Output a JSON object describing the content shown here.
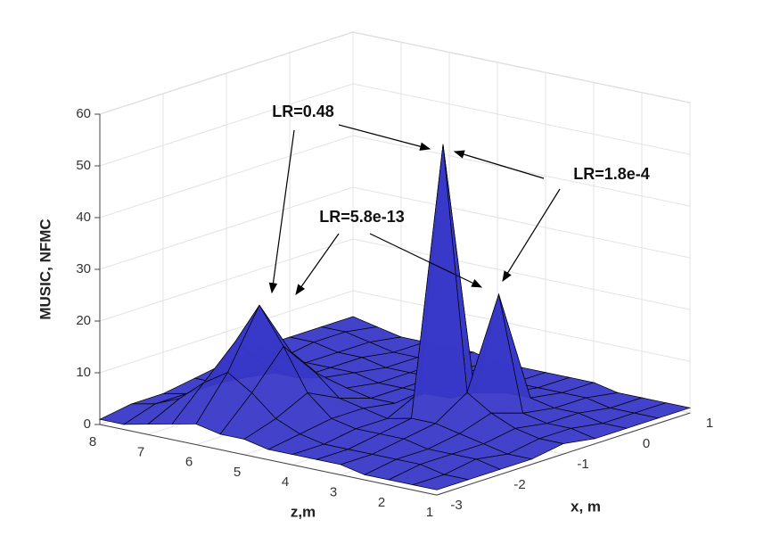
{
  "chart_data": {
    "type": "surface3d",
    "xlabel": "x, m",
    "ylabel": "z,m",
    "zlabel": "MUSIC, NFMC",
    "x": [
      -3,
      -2.5,
      -2,
      -1.5,
      -1,
      -0.5,
      0,
      0.5,
      1
    ],
    "y": [
      1,
      1.5,
      2,
      2.5,
      3,
      3.5,
      4,
      4.5,
      5,
      5.5,
      6,
      6.5,
      7,
      7.5,
      8
    ],
    "values": [
      [
        1,
        1,
        1,
        1,
        2,
        1,
        1,
        1,
        1
      ],
      [
        1,
        1,
        2,
        1,
        2,
        2,
        1,
        1,
        1
      ],
      [
        1,
        2,
        2,
        2,
        3,
        2,
        2,
        1,
        1
      ],
      [
        1,
        2,
        2,
        3,
        5,
        3,
        2,
        2,
        1
      ],
      [
        2,
        2,
        3,
        4,
        8,
        25,
        3,
        2,
        2
      ],
      [
        2,
        2,
        3,
        4,
        55,
        5,
        3,
        2,
        2
      ],
      [
        2,
        2,
        3,
        3,
        6,
        3,
        3,
        2,
        2
      ],
      [
        2,
        3,
        4,
        4,
        3,
        3,
        3,
        2,
        2
      ],
      [
        3,
        5,
        8,
        5,
        3,
        3,
        3,
        3,
        2
      ],
      [
        3,
        9,
        16,
        9,
        4,
        3,
        3,
        3,
        3
      ],
      [
        4,
        12,
        23,
        12,
        5,
        4,
        3,
        3,
        3
      ],
      [
        3,
        9,
        15,
        8,
        4,
        4,
        4,
        3,
        3
      ],
      [
        2,
        5,
        7,
        5,
        4,
        4,
        4,
        4,
        3
      ],
      [
        1,
        3,
        3,
        3,
        4,
        4,
        5,
        5,
        4
      ],
      [
        1,
        2,
        2,
        3,
        4,
        5,
        5,
        5,
        5
      ]
    ],
    "color": "#3838c8",
    "edge_color": "#000000",
    "xlim": [
      -3,
      1
    ],
    "xticks": [
      -3,
      -2,
      -1,
      0,
      1
    ],
    "ylim": [
      1,
      8
    ],
    "yticks": [
      1,
      2,
      3,
      4,
      5,
      6,
      7,
      8
    ],
    "zlim": [
      0,
      60
    ],
    "zticks": [
      0,
      10,
      20,
      30,
      40,
      50,
      60
    ],
    "grid": true,
    "annotations": [
      "LR=0.48",
      "LR=1.8e-4",
      "LR=5.8e-13"
    ]
  }
}
